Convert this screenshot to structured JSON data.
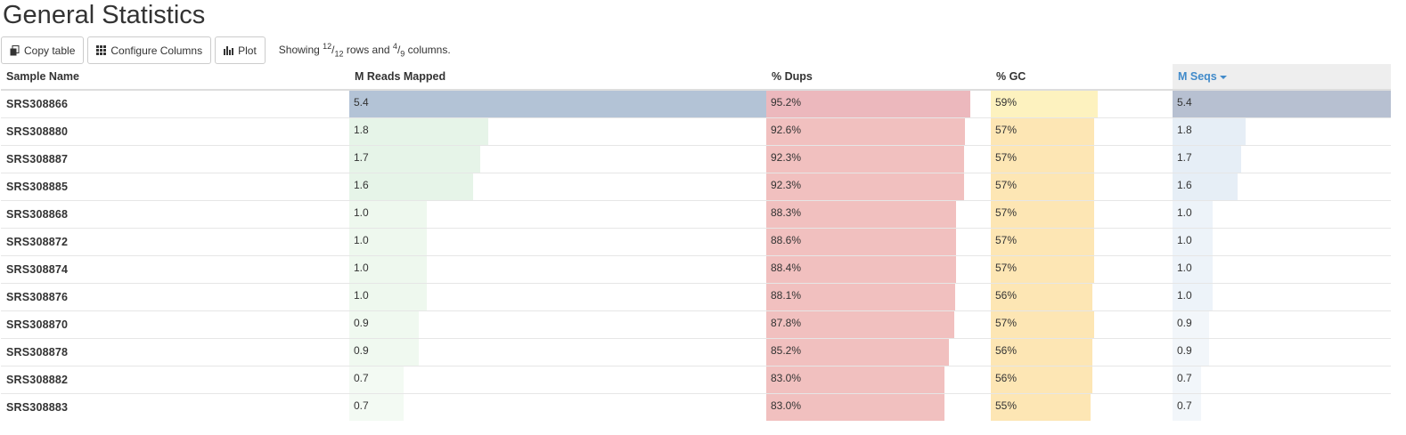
{
  "page": {
    "title": "General Statistics"
  },
  "toolbar": {
    "copy_label": "Copy table",
    "configure_label": "Configure Columns",
    "plot_label": "Plot",
    "showing_prefix": "Showing",
    "rows_shown": "12",
    "rows_total": "12",
    "rows_word": "rows and",
    "cols_shown": "4",
    "cols_total": "9",
    "cols_word": "columns."
  },
  "table": {
    "columns": [
      "Sample Name",
      "M Reads Mapped",
      "% Dups",
      "% GC",
      "M Seqs"
    ],
    "sorted_column": "M Seqs",
    "max": {
      "mapped": 5.4,
      "dups": 100,
      "gc": 100,
      "seqs": 5.4
    },
    "colors": {
      "mapped": [
        "#b3c3d6",
        "#e6f4e8",
        "#eef8ee",
        "#f0f9f0",
        "#f3faf3",
        "#f5fbf5"
      ],
      "dups": "#f1c0bf",
      "dups_top": "#ecb8bd",
      "gc": "#fde6b4",
      "gc_top": "#fdf2bf",
      "seqs_top": "#b7c0d1",
      "seqs": "#e6eef6"
    },
    "rows": [
      {
        "sample": "SRS308866",
        "mapped": "5.4",
        "dups": "95.2%",
        "gc": "59%",
        "seqs": "5.4"
      },
      {
        "sample": "SRS308880",
        "mapped": "1.8",
        "dups": "92.6%",
        "gc": "57%",
        "seqs": "1.8"
      },
      {
        "sample": "SRS308887",
        "mapped": "1.7",
        "dups": "92.3%",
        "gc": "57%",
        "seqs": "1.7"
      },
      {
        "sample": "SRS308885",
        "mapped": "1.6",
        "dups": "92.3%",
        "gc": "57%",
        "seqs": "1.6"
      },
      {
        "sample": "SRS308868",
        "mapped": "1.0",
        "dups": "88.3%",
        "gc": "57%",
        "seqs": "1.0"
      },
      {
        "sample": "SRS308872",
        "mapped": "1.0",
        "dups": "88.6%",
        "gc": "57%",
        "seqs": "1.0"
      },
      {
        "sample": "SRS308874",
        "mapped": "1.0",
        "dups": "88.4%",
        "gc": "57%",
        "seqs": "1.0"
      },
      {
        "sample": "SRS308876",
        "mapped": "1.0",
        "dups": "88.1%",
        "gc": "56%",
        "seqs": "1.0"
      },
      {
        "sample": "SRS308870",
        "mapped": "0.9",
        "dups": "87.8%",
        "gc": "57%",
        "seqs": "0.9"
      },
      {
        "sample": "SRS308878",
        "mapped": "0.9",
        "dups": "85.2%",
        "gc": "56%",
        "seqs": "0.9"
      },
      {
        "sample": "SRS308882",
        "mapped": "0.7",
        "dups": "83.0%",
        "gc": "56%",
        "seqs": "0.7"
      },
      {
        "sample": "SRS308883",
        "mapped": "0.7",
        "dups": "83.0%",
        "gc": "55%",
        "seqs": "0.7"
      }
    ]
  }
}
